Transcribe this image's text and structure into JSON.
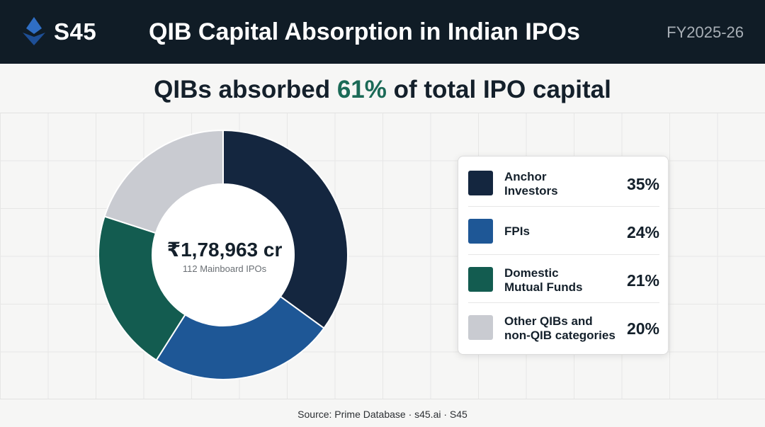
{
  "header": {
    "brand": "S45",
    "title": "QIB Capital Absorption in Indian IPOs",
    "period": "FY2025-26"
  },
  "headline": {
    "prefix": "QIBs absorbed ",
    "highlight": "61%",
    "suffix": " of total IPO capital",
    "accent_color": "#1b6a57"
  },
  "center": {
    "value": "₹1,78,963 cr",
    "subtitle": "112 Mainboard IPOs"
  },
  "chart_data": {
    "type": "pie",
    "donut": true,
    "start": "top, clockwise",
    "slices": [
      {
        "label": "Anchor Investors",
        "value": 35,
        "display": "35%",
        "color": "#14263f"
      },
      {
        "label": "FPIs",
        "value": 24,
        "display": "24%",
        "color": "#1e5796"
      },
      {
        "label": "Domestic Mutual Funds",
        "value": 21,
        "display": "21%",
        "color": "#135c50"
      },
      {
        "label": "Other QIBs and non-QIB categories",
        "value": 20,
        "display": "20%",
        "color": "#c9cbd1"
      }
    ]
  },
  "legend": {
    "items": [
      {
        "line1": "Anchor",
        "line2": "Investors",
        "pct": "35%"
      },
      {
        "line1": "FPIs",
        "line2": "",
        "pct": "24%"
      },
      {
        "line1": "Domestic",
        "line2": "Mutual Funds",
        "pct": "21%"
      },
      {
        "line1": "Other QIBs and",
        "line2": "non-QIB categories",
        "pct": "20%"
      }
    ]
  },
  "footer": {
    "source": "Source: Prime Database · s45.ai · S45"
  }
}
